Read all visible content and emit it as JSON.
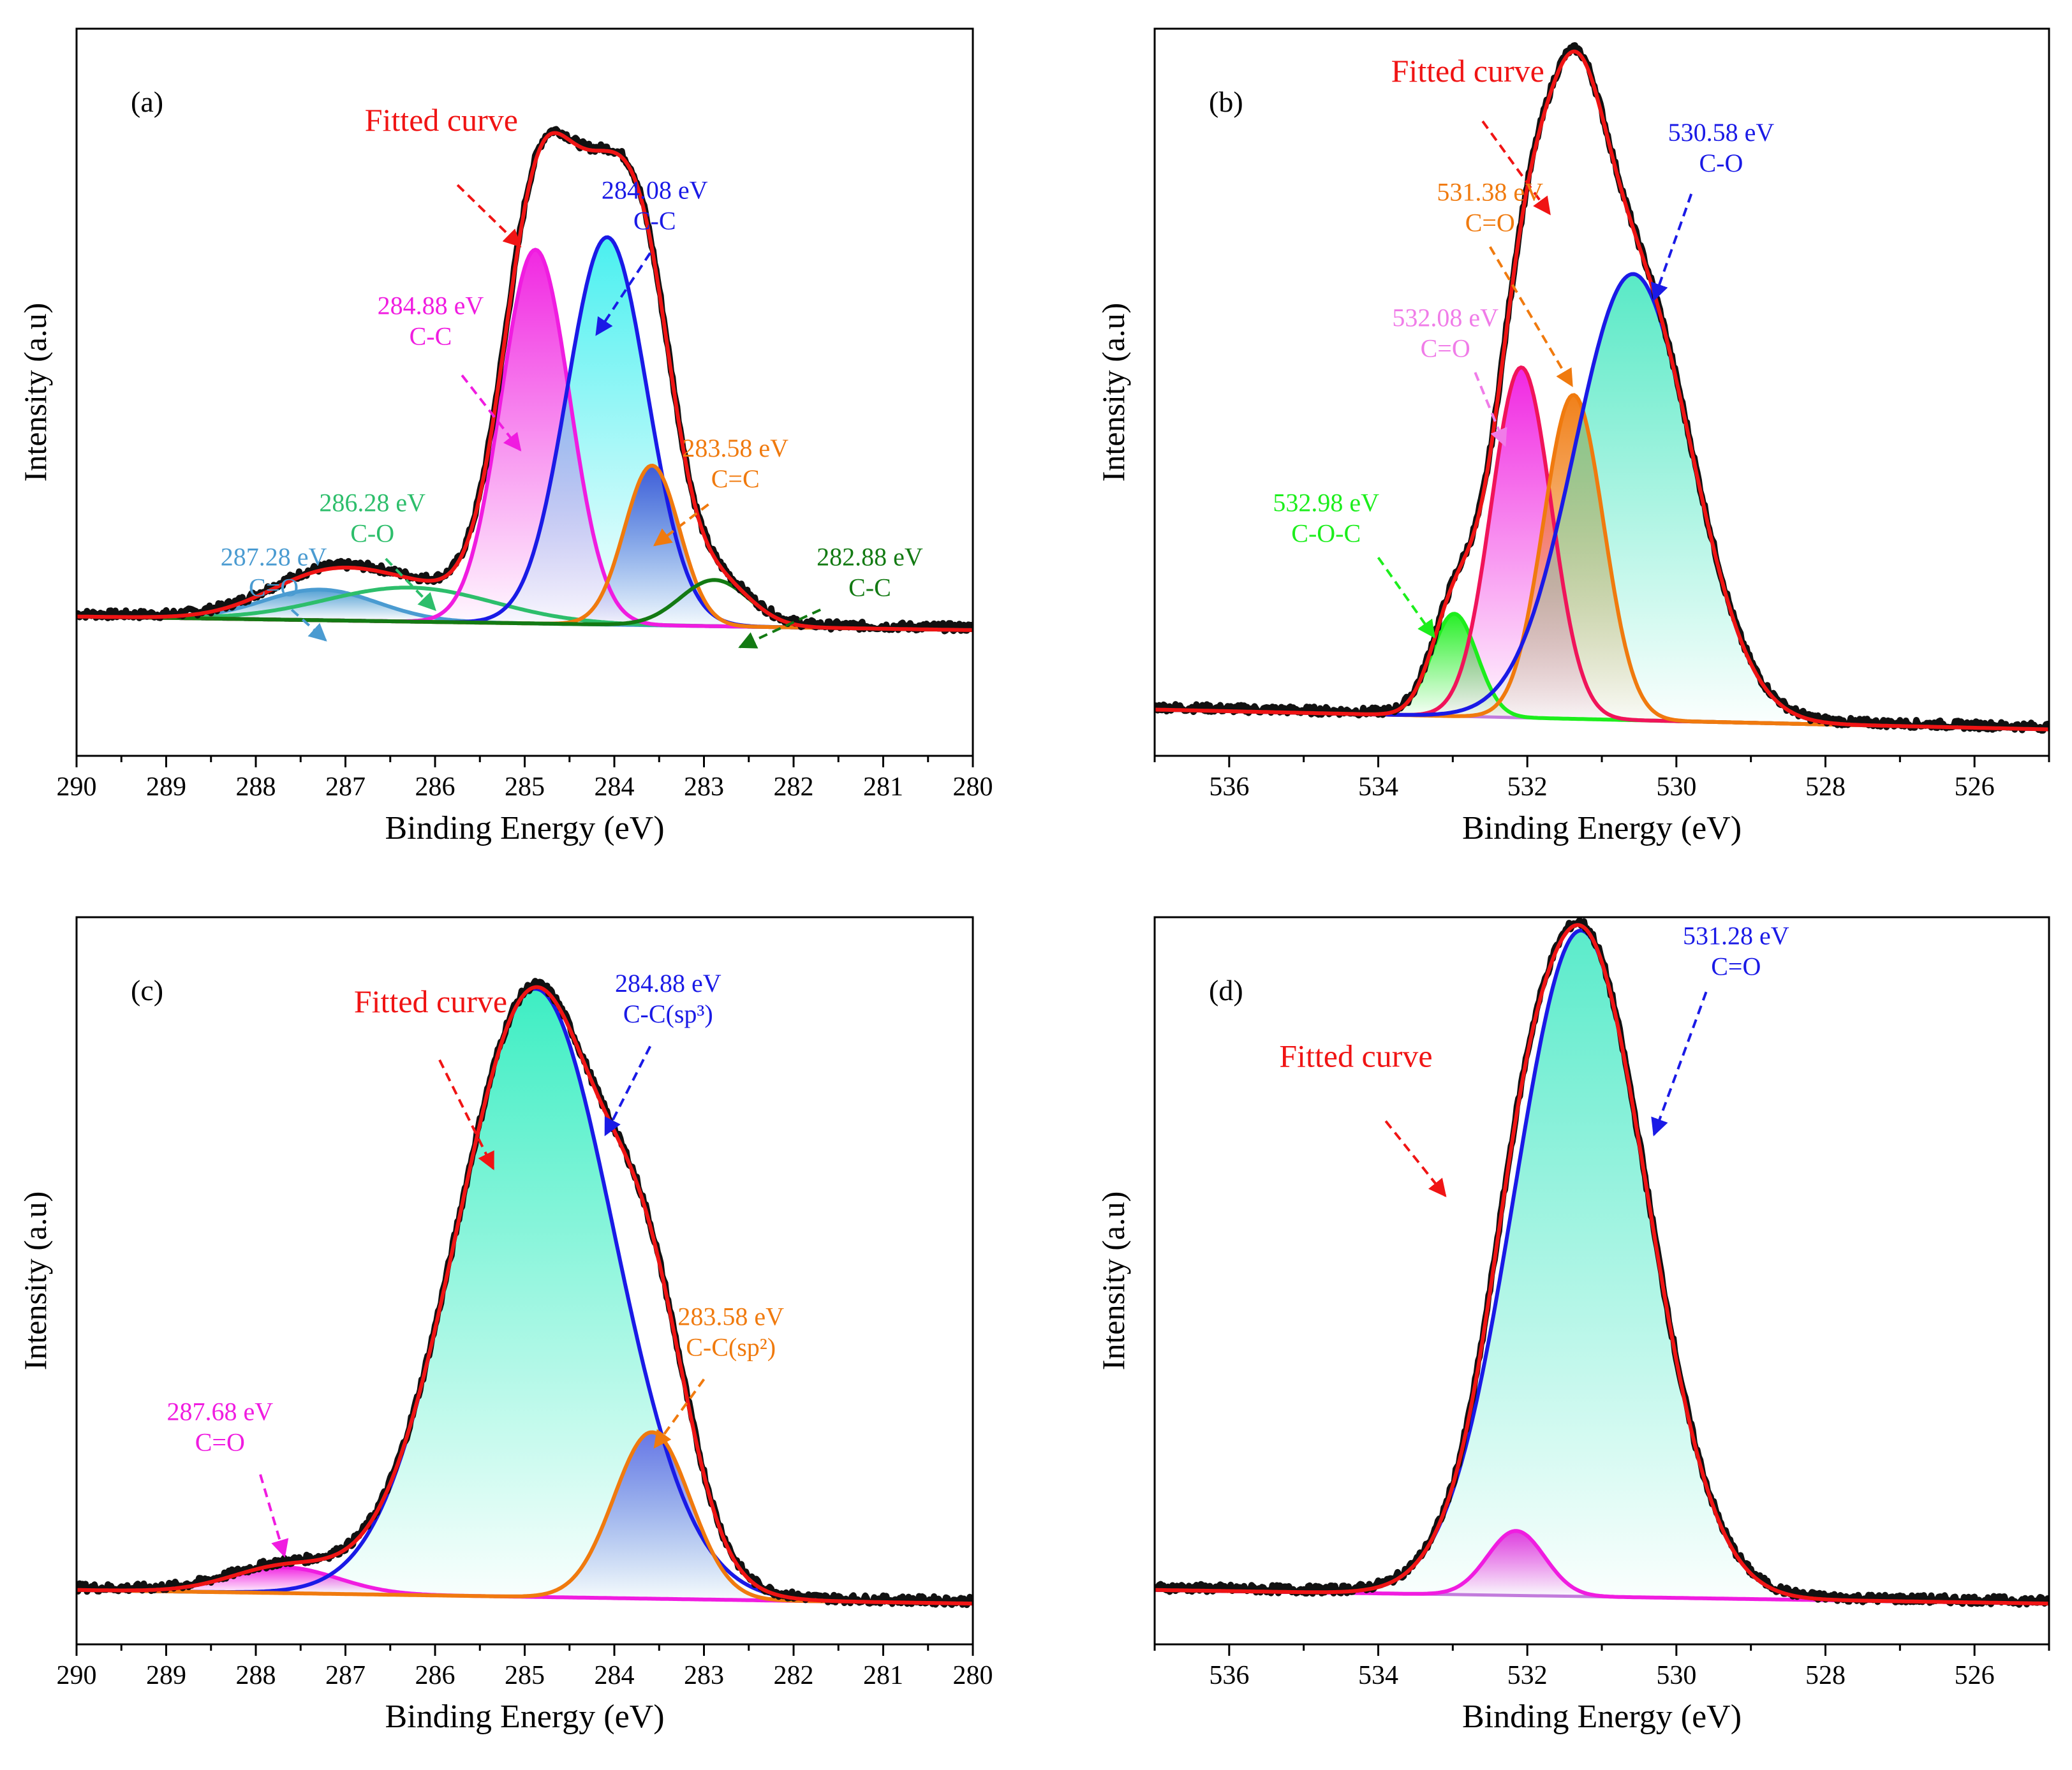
{
  "chart_data": [
    {
      "id": "a",
      "type": "line",
      "panel_label": "(a)",
      "xlabel": "Binding Energy (eV)",
      "ylabel": "Intensity (a.u)",
      "xlim": [
        290,
        280
      ],
      "ylim": [
        -0.05,
        1.02
      ],
      "xticks": [
        "290",
        "289",
        "288",
        "287",
        "286",
        "285",
        "284",
        "283",
        "282",
        "281",
        "280"
      ],
      "baseline": {
        "left": 0.155,
        "right": 0.135,
        "color": "#E2771C"
      },
      "components": [
        {
          "name": "C=O 287.28",
          "center": 287.28,
          "height": 0.045,
          "fwhm": 1.5,
          "color": "#4A9BD1",
          "fill": true
        },
        {
          "name": "C-O 286.28",
          "center": 286.28,
          "height": 0.05,
          "fwhm": 2.2,
          "color": "#2DBE6B",
          "fill": false
        },
        {
          "name": "C-C 284.88",
          "center": 284.88,
          "height": 0.55,
          "fwhm": 0.9,
          "color": "#F01CE0",
          "fill": true
        },
        {
          "name": "C-C 284.08",
          "center": 284.08,
          "height": 0.57,
          "fwhm": 1.05,
          "color": "#1A1AE6",
          "fill": true,
          "fill_color": "#40EFEF"
        },
        {
          "name": "C=C 283.58",
          "center": 283.58,
          "height": 0.235,
          "fwhm": 0.72,
          "color": "#F07A0E",
          "fill": true,
          "fill_color": "#3A55D6"
        },
        {
          "name": "C-C 282.88",
          "center": 282.88,
          "height": 0.068,
          "fwhm": 0.9,
          "color": "#137A13",
          "fill": false
        }
      ],
      "annotations": [
        {
          "line1": "Fitted curve",
          "line2": "",
          "color": "#F01414",
          "size": "big",
          "text_x": 285.93,
          "text_y": 0.87,
          "from": [
            285.75,
            0.79
          ],
          "to": [
            285.05,
            0.7
          ]
        },
        {
          "line1": "284.08 eV",
          "line2": "C-C",
          "color": "#1A1AE6",
          "size": "normal",
          "text_x": 283.55,
          "text_y": 0.77,
          "from": [
            283.6,
            0.69
          ],
          "to": [
            284.2,
            0.57
          ]
        },
        {
          "line1": "284.88 eV",
          "line2": "C-C",
          "color": "#F01CE0",
          "size": "normal",
          "text_x": 286.05,
          "text_y": 0.6,
          "from": [
            285.7,
            0.51
          ],
          "to": [
            285.05,
            0.4
          ]
        },
        {
          "line1": "283.58 eV",
          "line2": "C=C",
          "color": "#F07A0E",
          "size": "normal",
          "text_x": 282.65,
          "text_y": 0.39,
          "from": [
            282.95,
            0.32
          ],
          "to": [
            283.55,
            0.26
          ]
        },
        {
          "line1": "286.28 eV",
          "line2": "C-O",
          "color": "#2DBE6B",
          "size": "normal",
          "text_x": 286.7,
          "text_y": 0.31,
          "from": [
            286.55,
            0.24
          ],
          "to": [
            286.0,
            0.165
          ]
        },
        {
          "line1": "287.28 eV",
          "line2": "C=O",
          "color": "#4A9BD1",
          "size": "normal",
          "text_x": 287.8,
          "text_y": 0.23,
          "from": [
            287.6,
            0.165
          ],
          "to": [
            287.22,
            0.12
          ]
        },
        {
          "line1": "282.88 eV",
          "line2": "C-C",
          "color": "#137A13",
          "size": "normal",
          "text_x": 281.15,
          "text_y": 0.23,
          "from": [
            281.7,
            0.165
          ],
          "to": [
            282.6,
            0.11
          ]
        }
      ]
    },
    {
      "id": "b",
      "type": "line",
      "panel_label": "(b)",
      "xlabel": "Binding Energy (eV)",
      "ylabel": "Intensity (a.u)",
      "xlim": [
        537,
        525
      ],
      "ylim": [
        -0.04,
        1.06
      ],
      "xticks": [
        "536",
        "534",
        "532",
        "530",
        "528",
        "526"
      ],
      "baseline": {
        "left": 0.03,
        "right": 0.0,
        "color": "#C27BDC"
      },
      "components": [
        {
          "name": "C-O-C 532.98",
          "center": 532.98,
          "height": 0.155,
          "fwhm": 0.72,
          "color": "#1CEE1C",
          "fill": true
        },
        {
          "name": "C=O 532.08",
          "center": 532.08,
          "height": 0.53,
          "fwhm": 0.95,
          "color": "#F0145A",
          "fill": true,
          "fill_color": "#F01CE0"
        },
        {
          "name": "C=O 531.38",
          "center": 531.38,
          "height": 0.49,
          "fwhm": 0.95,
          "color": "#F07A0E",
          "fill": true
        },
        {
          "name": "C-O 530.58",
          "center": 530.58,
          "height": 0.675,
          "fwhm": 1.85,
          "color": "#1A1AE6",
          "fill": true,
          "fill_color": "#50E8C3"
        }
      ],
      "annotations": [
        {
          "line1": "Fitted curve",
          "line2": "",
          "color": "#F01414",
          "size": "big",
          "text_x": 532.8,
          "text_y": 0.98,
          "from": [
            532.6,
            0.92
          ],
          "to": [
            531.7,
            0.78
          ]
        },
        {
          "line1": "530.58 eV",
          "line2": "C-O",
          "color": "#1A1AE6",
          "size": "normal",
          "text_x": 529.4,
          "text_y": 0.89,
          "from": [
            529.8,
            0.81
          ],
          "to": [
            530.3,
            0.65
          ]
        },
        {
          "line1": "531.38 eV",
          "line2": "C=O",
          "color": "#F07A0E",
          "size": "normal",
          "text_x": 532.5,
          "text_y": 0.8,
          "from": [
            532.5,
            0.73
          ],
          "to": [
            531.4,
            0.52
          ]
        },
        {
          "line1": "532.08 eV",
          "line2": "C=O",
          "color": "#F07CE8",
          "size": "normal",
          "text_x": 533.1,
          "text_y": 0.61,
          "from": [
            532.7,
            0.54
          ],
          "to": [
            532.3,
            0.43
          ]
        },
        {
          "line1": "532.98 eV",
          "line2": "C-O-C",
          "color": "#1CEE1C",
          "size": "normal",
          "text_x": 534.7,
          "text_y": 0.33,
          "from": [
            534.0,
            0.26
          ],
          "to": [
            533.25,
            0.14
          ]
        }
      ]
    },
    {
      "id": "c",
      "type": "line",
      "panel_label": "(c)",
      "xlabel": "Binding Energy (eV)",
      "ylabel": "Intensity (a.u)",
      "xlim": [
        290,
        280
      ],
      "ylim": [
        -0.06,
        1.01
      ],
      "xticks": [
        "290",
        "289",
        "288",
        "287",
        "286",
        "285",
        "284",
        "283",
        "282",
        "281",
        "280"
      ],
      "baseline": {
        "left": 0.02,
        "right": 0.0,
        "color": "#C27BDC"
      },
      "components": [
        {
          "name": "C=O 287.68",
          "center": 287.68,
          "height": 0.038,
          "fwhm": 1.4,
          "color": "#F01CE0",
          "fill": true
        },
        {
          "name": "C-C(sp3) 284.88",
          "center": 284.88,
          "height": 0.895,
          "fwhm": 2.05,
          "color": "#1A1AE6",
          "fill": true,
          "fill_color": "#33EDC0"
        },
        {
          "name": "C-C(sp2) 283.58",
          "center": 283.58,
          "height": 0.245,
          "fwhm": 1.0,
          "color": "#F07A0E",
          "fill": true,
          "fill_color": "#6370E6"
        }
      ],
      "annotations": [
        {
          "line1": "Fitted curve",
          "line2": "",
          "color": "#F01414",
          "size": "big",
          "text_x": 286.05,
          "text_y": 0.87,
          "from": [
            285.95,
            0.8
          ],
          "to": [
            285.35,
            0.64
          ]
        },
        {
          "line1": "284.88 eV",
          "line2": "C-C(sp³)",
          "color": "#1A1AE6",
          "size": "normal",
          "text_x": 283.4,
          "text_y": 0.9,
          "from": [
            283.6,
            0.82
          ],
          "to": [
            284.1,
            0.69
          ]
        },
        {
          "line1": "283.58 eV",
          "line2": "C-C(sp²)",
          "color": "#F07A0E",
          "size": "normal",
          "text_x": 282.7,
          "text_y": 0.41,
          "from": [
            283.0,
            0.33
          ],
          "to": [
            283.55,
            0.23
          ]
        },
        {
          "line1": "287.68 eV",
          "line2": "C=O",
          "color": "#F01CE0",
          "size": "normal",
          "text_x": 288.4,
          "text_y": 0.27,
          "from": [
            287.95,
            0.19
          ],
          "to": [
            287.68,
            0.07
          ]
        }
      ]
    },
    {
      "id": "d",
      "type": "line",
      "panel_label": "(d)",
      "xlabel": "Binding Energy (eV)",
      "ylabel": "Intensity (a.u)",
      "xlim": [
        537,
        525
      ],
      "ylim": [
        -0.06,
        1.01
      ],
      "xticks": [
        "536",
        "534",
        "532",
        "530",
        "528",
        "526"
      ],
      "baseline": {
        "left": 0.02,
        "right": 0.0,
        "color": "#C27BDC"
      },
      "components": [
        {
          "name": "532.1",
          "center": 532.15,
          "height": 0.095,
          "fwhm": 0.9,
          "color": "#F01CE0",
          "fill": true
        },
        {
          "name": "C=O 531.28",
          "center": 531.28,
          "height": 0.98,
          "fwhm": 2.1,
          "color": "#1A1AE6",
          "fill": true,
          "fill_color": "#52EAC8"
        }
      ],
      "annotations": [
        {
          "line1": "Fitted curve",
          "line2": "",
          "color": "#F01414",
          "size": "big",
          "text_x": 534.3,
          "text_y": 0.79,
          "from": [
            533.9,
            0.71
          ],
          "to": [
            533.1,
            0.6
          ]
        },
        {
          "line1": "531.28 eV",
          "line2": "C=O",
          "color": "#1A1AE6",
          "size": "normal",
          "text_x": 529.2,
          "text_y": 0.97,
          "from": [
            529.6,
            0.9
          ],
          "to": [
            530.3,
            0.69
          ]
        }
      ]
    }
  ]
}
